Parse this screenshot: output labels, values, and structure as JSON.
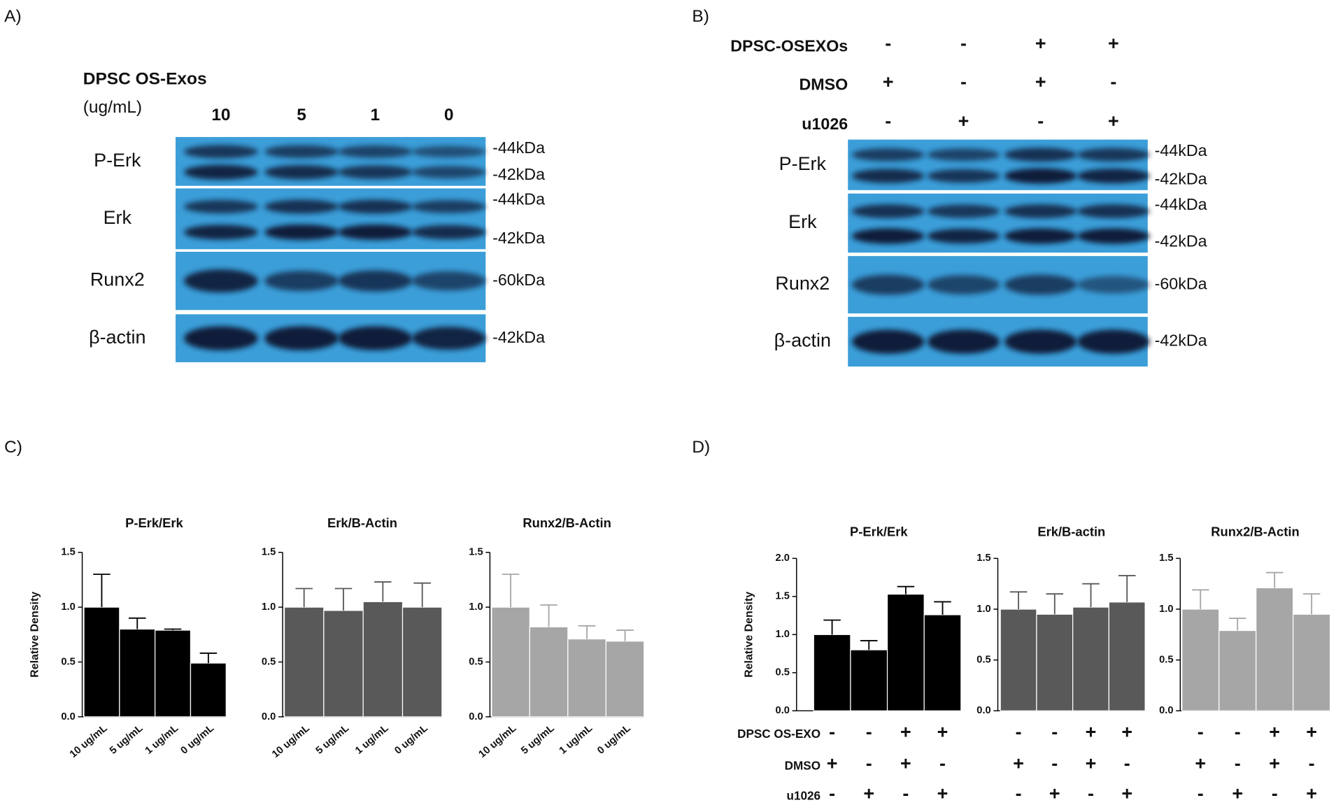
{
  "panels": {
    "a": "A)",
    "b": "B)",
    "c": "C)",
    "d": "D)"
  },
  "blot_a": {
    "treatment": "DPSC OS-Exos",
    "unit": "(ug/mL)",
    "lanes": [
      "10",
      "5",
      "1",
      "0"
    ],
    "rows": [
      {
        "label": "P-Erk",
        "markers": [
          "-44kDa",
          "-42kDa"
        ]
      },
      {
        "label": "Erk",
        "markers": [
          "-44kDa",
          "-42kDa"
        ]
      },
      {
        "label": "Runx2",
        "markers": [
          "-60kDa"
        ]
      },
      {
        "label": "β-actin",
        "markers": [
          "-42kDa"
        ]
      }
    ]
  },
  "blot_b": {
    "conditions": [
      {
        "label": "DPSC-OSEXOs",
        "signs": [
          "-",
          "-",
          "+",
          "+"
        ]
      },
      {
        "label": "DMSO",
        "signs": [
          "+",
          "-",
          "+",
          "-"
        ]
      },
      {
        "label": "u1026",
        "signs": [
          "-",
          "+",
          "-",
          "+"
        ]
      }
    ],
    "rows": [
      {
        "label": "P-Erk",
        "markers": [
          "-44kDa",
          "-42kDa"
        ]
      },
      {
        "label": "Erk",
        "markers": [
          "-44kDa",
          "-42kDa"
        ]
      },
      {
        "label": "Runx2",
        "markers": [
          "-60kDa"
        ]
      },
      {
        "label": "β-actin",
        "markers": [
          "-42kDa"
        ]
      }
    ]
  },
  "conditions_d": [
    {
      "label": "DPSC OS-EXO",
      "signs": [
        "-",
        "-",
        "+",
        "+"
      ]
    },
    {
      "label": "DMSO",
      "signs": [
        "+",
        "-",
        "+",
        "-"
      ]
    },
    {
      "label": "u1026",
      "signs": [
        "-",
        "+",
        "-",
        "+"
      ]
    }
  ],
  "chart_data": [
    {
      "type": "bar",
      "title": "P-Erk/Erk",
      "ylabel": "Relative Density",
      "color": "#000000",
      "categories": [
        "10 ug/mL",
        "5 ug/mL",
        "1 ug/mL",
        "0 ug/mL"
      ],
      "values": [
        1.0,
        0.8,
        0.79,
        0.49
      ],
      "errors": [
        0.3,
        0.1,
        0.01,
        0.09
      ],
      "ylim": [
        0,
        1.5
      ],
      "yticks": [
        {
          "value": 0,
          "label": "0.0"
        },
        0.5,
        {
          "value": 1,
          "label": "1.0"
        },
        1.5
      ]
    },
    {
      "type": "bar",
      "title": "Erk/B-Actin",
      "color": "#595959",
      "categories": [
        "10 ug/mL",
        "5 ug/mL",
        "1 ug/mL",
        "0 ug/mL"
      ],
      "values": [
        1.0,
        0.97,
        1.05,
        1.0
      ],
      "errors": [
        0.17,
        0.2,
        0.18,
        0.22
      ],
      "ylim": [
        0,
        1.5
      ],
      "yticks": [
        {
          "value": 0,
          "label": "0.0"
        },
        0.5,
        {
          "value": 1,
          "label": "1.0"
        },
        1.5
      ]
    },
    {
      "type": "bar",
      "title": "Runx2/B-Actin",
      "color": "#a6a6a6",
      "categories": [
        "10 ug/mL",
        "5 ug/mL",
        "1 ug/mL",
        "0 ug/mL"
      ],
      "values": [
        1.0,
        0.82,
        0.71,
        0.69
      ],
      "errors": [
        0.3,
        0.2,
        0.12,
        0.1
      ],
      "ylim": [
        0,
        1.5
      ],
      "yticks": [
        {
          "value": 0,
          "label": "0.0"
        },
        0.5,
        {
          "value": 1,
          "label": "1.0"
        },
        1.5
      ]
    },
    {
      "type": "bar",
      "title": "P-Erk/Erk",
      "ylabel": "Relative Density",
      "color": "#000000",
      "categories": [
        null,
        null,
        null,
        null
      ],
      "values": [
        1.0,
        0.8,
        1.53,
        1.26
      ],
      "errors": [
        0.19,
        0.12,
        0.1,
        0.17
      ],
      "ylim": [
        0,
        2
      ],
      "yticks": [
        {
          "value": 0,
          "label": "0.0"
        },
        0.5,
        {
          "value": 1,
          "label": "1.0"
        },
        1.5,
        {
          "value": 2,
          "label": "2.0"
        }
      ]
    },
    {
      "type": "bar",
      "title": "Erk/B-actin",
      "color": "#595959",
      "categories": [
        null,
        null,
        null,
        null
      ],
      "values": [
        1.0,
        0.95,
        1.02,
        1.07
      ],
      "errors": [
        0.17,
        0.2,
        0.23,
        0.26
      ],
      "ylim": [
        0,
        1.5
      ],
      "yticks": [
        {
          "value": 0,
          "label": "0.0"
        },
        0.5,
        {
          "value": 1,
          "label": "1.0"
        },
        1.5
      ]
    },
    {
      "type": "bar",
      "title": "Runx2/B-Actin",
      "color": "#a6a6a6",
      "categories": [
        null,
        null,
        null,
        null
      ],
      "values": [
        1.0,
        0.79,
        1.21,
        0.95
      ],
      "errors": [
        0.19,
        0.12,
        0.15,
        0.2
      ],
      "ylim": [
        0,
        1.5
      ],
      "yticks": [
        {
          "value": 0,
          "label": "0.0"
        },
        0.5,
        {
          "value": 1,
          "label": "1.0"
        },
        1.5
      ]
    }
  ]
}
